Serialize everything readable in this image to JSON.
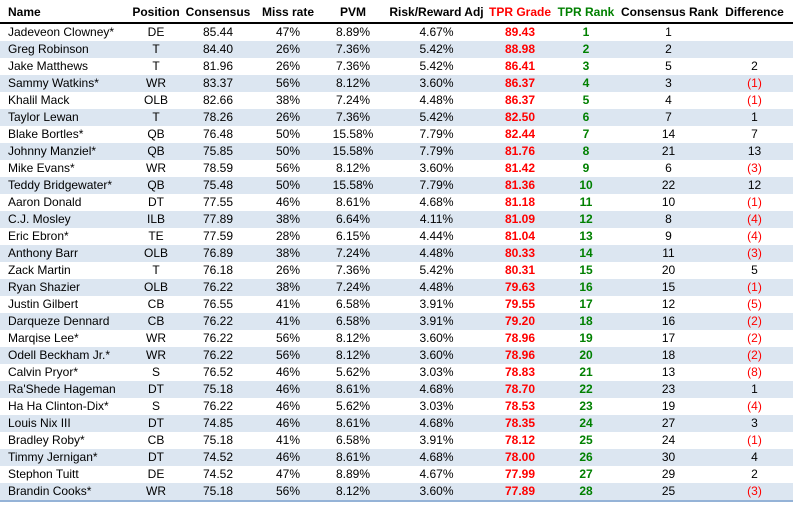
{
  "table": {
    "colors": {
      "grade_text": "#ff0000",
      "rank_text": "#008000",
      "negative_text": "#ff0000",
      "stripe": "#dce6f1",
      "bottom_border": "#95b3d7",
      "header_border": "#000000"
    },
    "columns": [
      {
        "key": "name",
        "label": "Name"
      },
      {
        "key": "position",
        "label": "Position"
      },
      {
        "key": "consensus",
        "label": "Consensus"
      },
      {
        "key": "miss_rate",
        "label": "Miss rate"
      },
      {
        "key": "pvm",
        "label": "PVM"
      },
      {
        "key": "risk_reward_adj",
        "label": "Risk/Reward Adj"
      },
      {
        "key": "tpr_grade",
        "label": "TPR Grade"
      },
      {
        "key": "tpr_rank",
        "label": "TPR Rank"
      },
      {
        "key": "consensus_rank",
        "label": "Consensus Rank"
      },
      {
        "key": "difference",
        "label": "Difference"
      }
    ],
    "rows": [
      {
        "name": "Jadeveon Clowney*",
        "position": "DE",
        "consensus": "85.44",
        "miss_rate": "47%",
        "pvm": "8.89%",
        "risk_reward_adj": "4.67%",
        "tpr_grade": "89.43",
        "tpr_rank": "1",
        "consensus_rank": "1",
        "difference": ""
      },
      {
        "name": "Greg Robinson",
        "position": "T",
        "consensus": "84.40",
        "miss_rate": "26%",
        "pvm": "7.36%",
        "risk_reward_adj": "5.42%",
        "tpr_grade": "88.98",
        "tpr_rank": "2",
        "consensus_rank": "2",
        "difference": ""
      },
      {
        "name": "Jake Matthews",
        "position": "T",
        "consensus": "81.96",
        "miss_rate": "26%",
        "pvm": "7.36%",
        "risk_reward_adj": "5.42%",
        "tpr_grade": "86.41",
        "tpr_rank": "3",
        "consensus_rank": "5",
        "difference": "2"
      },
      {
        "name": "Sammy Watkins*",
        "position": "WR",
        "consensus": "83.37",
        "miss_rate": "56%",
        "pvm": "8.12%",
        "risk_reward_adj": "3.60%",
        "tpr_grade": "86.37",
        "tpr_rank": "4",
        "consensus_rank": "3",
        "difference": "(1)"
      },
      {
        "name": "Khalil Mack",
        "position": "OLB",
        "consensus": "82.66",
        "miss_rate": "38%",
        "pvm": "7.24%",
        "risk_reward_adj": "4.48%",
        "tpr_grade": "86.37",
        "tpr_rank": "5",
        "consensus_rank": "4",
        "difference": "(1)"
      },
      {
        "name": "Taylor Lewan",
        "position": "T",
        "consensus": "78.26",
        "miss_rate": "26%",
        "pvm": "7.36%",
        "risk_reward_adj": "5.42%",
        "tpr_grade": "82.50",
        "tpr_rank": "6",
        "consensus_rank": "7",
        "difference": "1"
      },
      {
        "name": "Blake Bortles*",
        "position": "QB",
        "consensus": "76.48",
        "miss_rate": "50%",
        "pvm": "15.58%",
        "risk_reward_adj": "7.79%",
        "tpr_grade": "82.44",
        "tpr_rank": "7",
        "consensus_rank": "14",
        "difference": "7"
      },
      {
        "name": "Johnny Manziel*",
        "position": "QB",
        "consensus": "75.85",
        "miss_rate": "50%",
        "pvm": "15.58%",
        "risk_reward_adj": "7.79%",
        "tpr_grade": "81.76",
        "tpr_rank": "8",
        "consensus_rank": "21",
        "difference": "13"
      },
      {
        "name": "Mike Evans*",
        "position": "WR",
        "consensus": "78.59",
        "miss_rate": "56%",
        "pvm": "8.12%",
        "risk_reward_adj": "3.60%",
        "tpr_grade": "81.42",
        "tpr_rank": "9",
        "consensus_rank": "6",
        "difference": "(3)"
      },
      {
        "name": "Teddy Bridgewater*",
        "position": "QB",
        "consensus": "75.48",
        "miss_rate": "50%",
        "pvm": "15.58%",
        "risk_reward_adj": "7.79%",
        "tpr_grade": "81.36",
        "tpr_rank": "10",
        "consensus_rank": "22",
        "difference": "12"
      },
      {
        "name": "Aaron Donald",
        "position": "DT",
        "consensus": "77.55",
        "miss_rate": "46%",
        "pvm": "8.61%",
        "risk_reward_adj": "4.68%",
        "tpr_grade": "81.18",
        "tpr_rank": "11",
        "consensus_rank": "10",
        "difference": "(1)"
      },
      {
        "name": "C.J. Mosley",
        "position": "ILB",
        "consensus": "77.89",
        "miss_rate": "38%",
        "pvm": "6.64%",
        "risk_reward_adj": "4.11%",
        "tpr_grade": "81.09",
        "tpr_rank": "12",
        "consensus_rank": "8",
        "difference": "(4)"
      },
      {
        "name": "Eric Ebron*",
        "position": "TE",
        "consensus": "77.59",
        "miss_rate": "28%",
        "pvm": "6.15%",
        "risk_reward_adj": "4.44%",
        "tpr_grade": "81.04",
        "tpr_rank": "13",
        "consensus_rank": "9",
        "difference": "(4)"
      },
      {
        "name": "Anthony Barr",
        "position": "OLB",
        "consensus": "76.89",
        "miss_rate": "38%",
        "pvm": "7.24%",
        "risk_reward_adj": "4.48%",
        "tpr_grade": "80.33",
        "tpr_rank": "14",
        "consensus_rank": "11",
        "difference": "(3)"
      },
      {
        "name": "Zack Martin",
        "position": "T",
        "consensus": "76.18",
        "miss_rate": "26%",
        "pvm": "7.36%",
        "risk_reward_adj": "5.42%",
        "tpr_grade": "80.31",
        "tpr_rank": "15",
        "consensus_rank": "20",
        "difference": "5"
      },
      {
        "name": "Ryan Shazier",
        "position": "OLB",
        "consensus": "76.22",
        "miss_rate": "38%",
        "pvm": "7.24%",
        "risk_reward_adj": "4.48%",
        "tpr_grade": "79.63",
        "tpr_rank": "16",
        "consensus_rank": "15",
        "difference": "(1)"
      },
      {
        "name": "Justin Gilbert",
        "position": "CB",
        "consensus": "76.55",
        "miss_rate": "41%",
        "pvm": "6.58%",
        "risk_reward_adj": "3.91%",
        "tpr_grade": "79.55",
        "tpr_rank": "17",
        "consensus_rank": "12",
        "difference": "(5)"
      },
      {
        "name": "Darqueze Dennard",
        "position": "CB",
        "consensus": "76.22",
        "miss_rate": "41%",
        "pvm": "6.58%",
        "risk_reward_adj": "3.91%",
        "tpr_grade": "79.20",
        "tpr_rank": "18",
        "consensus_rank": "16",
        "difference": "(2)"
      },
      {
        "name": "Marqise Lee*",
        "position": "WR",
        "consensus": "76.22",
        "miss_rate": "56%",
        "pvm": "8.12%",
        "risk_reward_adj": "3.60%",
        "tpr_grade": "78.96",
        "tpr_rank": "19",
        "consensus_rank": "17",
        "difference": "(2)"
      },
      {
        "name": "Odell Beckham Jr.*",
        "position": "WR",
        "consensus": "76.22",
        "miss_rate": "56%",
        "pvm": "8.12%",
        "risk_reward_adj": "3.60%",
        "tpr_grade": "78.96",
        "tpr_rank": "20",
        "consensus_rank": "18",
        "difference": "(2)"
      },
      {
        "name": "Calvin Pryor*",
        "position": "S",
        "consensus": "76.52",
        "miss_rate": "46%",
        "pvm": "5.62%",
        "risk_reward_adj": "3.03%",
        "tpr_grade": "78.83",
        "tpr_rank": "21",
        "consensus_rank": "13",
        "difference": "(8)"
      },
      {
        "name": "Ra'Shede Hageman",
        "position": "DT",
        "consensus": "75.18",
        "miss_rate": "46%",
        "pvm": "8.61%",
        "risk_reward_adj": "4.68%",
        "tpr_grade": "78.70",
        "tpr_rank": "22",
        "consensus_rank": "23",
        "difference": "1"
      },
      {
        "name": "Ha Ha Clinton-Dix*",
        "position": "S",
        "consensus": "76.22",
        "miss_rate": "46%",
        "pvm": "5.62%",
        "risk_reward_adj": "3.03%",
        "tpr_grade": "78.53",
        "tpr_rank": "23",
        "consensus_rank": "19",
        "difference": "(4)"
      },
      {
        "name": "Louis Nix III",
        "position": "DT",
        "consensus": "74.85",
        "miss_rate": "46%",
        "pvm": "8.61%",
        "risk_reward_adj": "4.68%",
        "tpr_grade": "78.35",
        "tpr_rank": "24",
        "consensus_rank": "27",
        "difference": "3"
      },
      {
        "name": "Bradley Roby*",
        "position": "CB",
        "consensus": "75.18",
        "miss_rate": "41%",
        "pvm": "6.58%",
        "risk_reward_adj": "3.91%",
        "tpr_grade": "78.12",
        "tpr_rank": "25",
        "consensus_rank": "24",
        "difference": "(1)"
      },
      {
        "name": "Timmy Jernigan*",
        "position": "DT",
        "consensus": "74.52",
        "miss_rate": "46%",
        "pvm": "8.61%",
        "risk_reward_adj": "4.68%",
        "tpr_grade": "78.00",
        "tpr_rank": "26",
        "consensus_rank": "30",
        "difference": "4"
      },
      {
        "name": "Stephon Tuitt",
        "position": "DE",
        "consensus": "74.52",
        "miss_rate": "47%",
        "pvm": "8.89%",
        "risk_reward_adj": "4.67%",
        "tpr_grade": "77.99",
        "tpr_rank": "27",
        "consensus_rank": "29",
        "difference": "2"
      },
      {
        "name": "Brandin Cooks*",
        "position": "WR",
        "consensus": "75.18",
        "miss_rate": "56%",
        "pvm": "8.12%",
        "risk_reward_adj": "3.60%",
        "tpr_grade": "77.89",
        "tpr_rank": "28",
        "consensus_rank": "25",
        "difference": "(3)"
      }
    ]
  }
}
